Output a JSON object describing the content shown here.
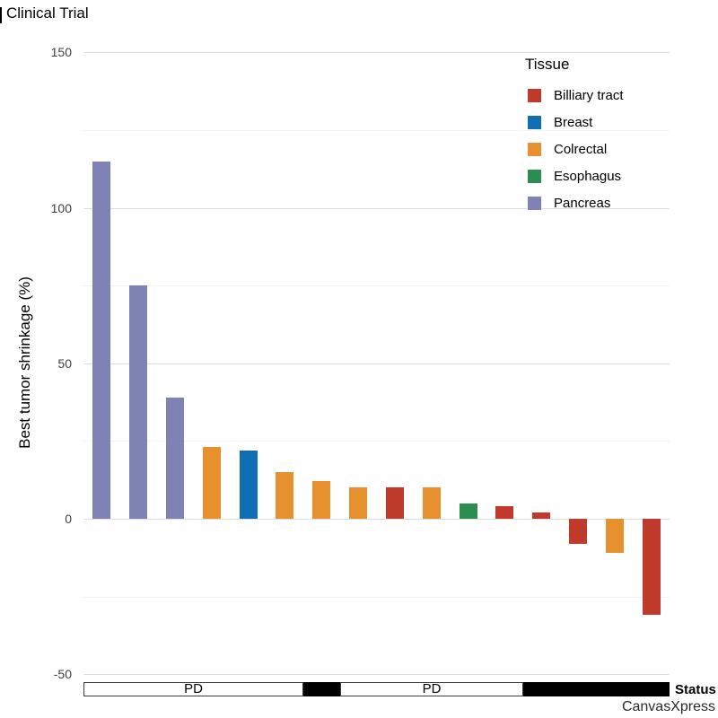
{
  "header": {
    "title": "Clinical Trial"
  },
  "chart_data": {
    "type": "bar",
    "title": "Clinical Trial",
    "ylabel": "Best tumor shrinkage (%)",
    "ylim": [
      -50,
      150
    ],
    "yticks_major": [
      150,
      100,
      50,
      0,
      -50
    ],
    "yticks_minor": [
      125,
      75,
      25,
      -25
    ],
    "grid": true,
    "legend": {
      "title": "Tissue",
      "position": "top-right",
      "entries": [
        {
          "label": "Billiary tract",
          "color": "#c03a2b"
        },
        {
          "label": "Breast",
          "color": "#0f6fb2"
        },
        {
          "label": "Colrectal",
          "color": "#e7912e"
        },
        {
          "label": "Esophagus",
          "color": "#2b8e50"
        },
        {
          "label": "Pancreas",
          "color": "#7e82b4"
        }
      ]
    },
    "bars": [
      {
        "tissue": "Pancreas",
        "value": 115
      },
      {
        "tissue": "Pancreas",
        "value": 75
      },
      {
        "tissue": "Pancreas",
        "value": 39
      },
      {
        "tissue": "Colrectal",
        "value": 23
      },
      {
        "tissue": "Breast",
        "value": 22
      },
      {
        "tissue": "Colrectal",
        "value": 15
      },
      {
        "tissue": "Colrectal",
        "value": 12
      },
      {
        "tissue": "Colrectal",
        "value": 10
      },
      {
        "tissue": "Billiary tract",
        "value": 10
      },
      {
        "tissue": "Colrectal",
        "value": 10
      },
      {
        "tissue": "Esophagus",
        "value": 5
      },
      {
        "tissue": "Billiary tract",
        "value": 4
      },
      {
        "tissue": "Billiary tract",
        "value": 2
      },
      {
        "tissue": "Billiary tract",
        "value": -8
      },
      {
        "tissue": "Colrectal",
        "value": -11
      },
      {
        "tissue": "Billiary tract",
        "value": -31
      }
    ],
    "status_track": {
      "label": "Status",
      "segments": [
        {
          "text": "PD",
          "style": "white",
          "from_bar": 0,
          "to_bar": 6
        },
        {
          "text": "",
          "style": "black",
          "from_bar": 6,
          "to_bar": 7
        },
        {
          "text": "PD",
          "style": "white",
          "from_bar": 7,
          "to_bar": 12
        },
        {
          "text": "",
          "style": "black",
          "from_bar": 12,
          "to_bar": 16
        }
      ]
    },
    "watermark": "CanvasXpress"
  }
}
